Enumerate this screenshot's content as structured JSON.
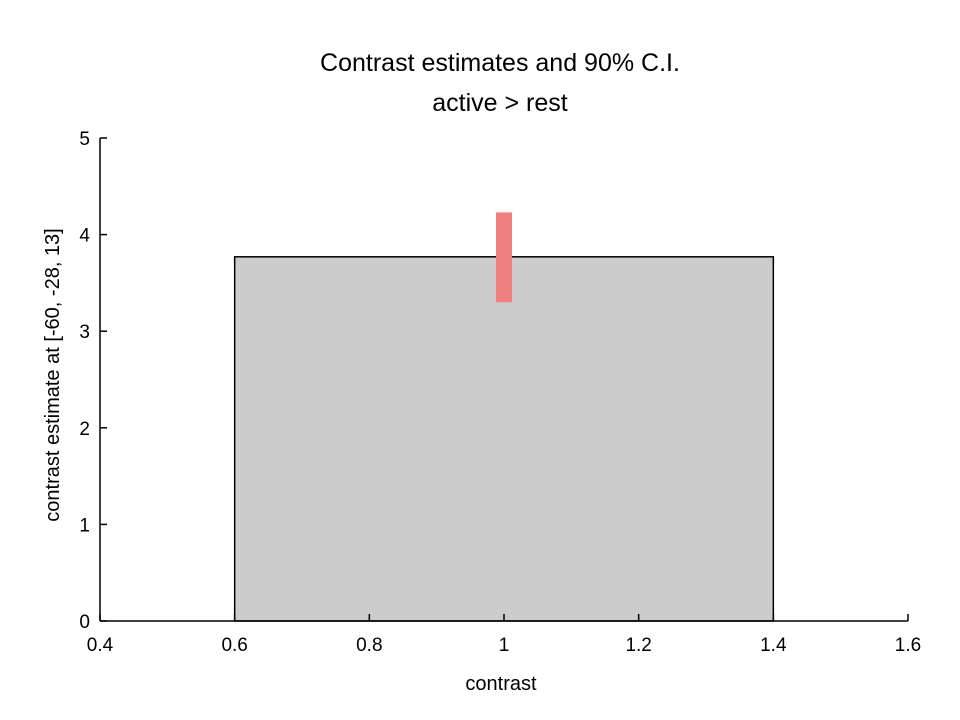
{
  "chart_data": {
    "type": "bar",
    "title": "Contrast estimates and 90% C.I.",
    "subtitle": "active > rest",
    "xlabel": "contrast",
    "ylabel": "contrast estimate at [-60, -28, 13]",
    "xlim": [
      0.4,
      1.6
    ],
    "ylim": [
      0,
      5
    ],
    "xticks": [
      "0.4",
      "0.6",
      "0.8",
      "1",
      "1.2",
      "1.4",
      "1.6"
    ],
    "yticks": [
      "0",
      "1",
      "2",
      "3",
      "4",
      "5"
    ],
    "grid": false,
    "bars": [
      {
        "x": 1,
        "x_start": 0.6,
        "x_end": 1.4,
        "value": 3.77,
        "color": "#cccccc",
        "edge_color": "#000000"
      }
    ],
    "error_bars": [
      {
        "x": 1,
        "low": 3.3,
        "high": 4.23,
        "color": "#f08080"
      }
    ]
  }
}
